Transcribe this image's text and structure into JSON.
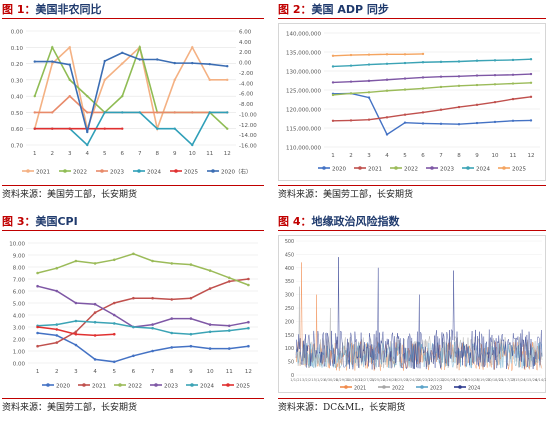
{
  "panels": [
    {
      "fig": "图 1：",
      "title": "美国非农同比",
      "source": "资料来源：美国劳工部，长安期货"
    },
    {
      "fig": "图 2：",
      "title": "美国 ADP 同步",
      "source": "资料来源：美国劳工部，长安期货"
    },
    {
      "fig": "图 3：",
      "title": "美国CPI",
      "source": "资料来源：美国劳工部，长安期货"
    },
    {
      "fig": "图 4：",
      "title": "地缘政治风险指数",
      "source": "资料来源：DC&ML，长安期货"
    }
  ],
  "chart_data": [
    {
      "type": "line",
      "title": "美国非农同比",
      "categories": [
        "1",
        "2",
        "3",
        "4",
        "5",
        "6",
        "7",
        "8",
        "9",
        "10",
        "11",
        "12"
      ],
      "ylim_left": [
        0,
        0.7
      ],
      "yticks_left": [
        "0.00",
        "0.10",
        "0.20",
        "0.30",
        "0.40",
        "0.50",
        "0.60",
        "0.70"
      ],
      "ylim_right": [
        -16,
        6
      ],
      "yticks_right": [
        "6.00",
        "4.00",
        "2.00",
        "0.00",
        "-2.00",
        "-4.00",
        "-6.00",
        "-8.00",
        "-10.00",
        "-12.00",
        "-14.00",
        "-16.00"
      ],
      "series": [
        {
          "name": "2021",
          "color": "#f4b183",
          "axis": "left",
          "values": [
            0.1,
            0.5,
            0.6,
            0.1,
            0.4,
            0.5,
            0.6,
            0.1,
            0.4,
            0.6,
            0.4,
            0.4
          ]
        },
        {
          "name": "2022",
          "color": "#8fbc54",
          "axis": "left",
          "values": [
            0.3,
            0.6,
            0.4,
            0.3,
            0.2,
            0.3,
            0.6,
            0.2,
            0.2,
            0.2,
            0.2,
            0.1
          ]
        },
        {
          "name": "2023",
          "color": "#e88a6a",
          "axis": "left",
          "values": [
            0.2,
            0.2,
            0.3,
            0.2,
            0.2,
            0.2,
            0.2,
            0.2,
            0.2,
            0.2,
            0.2,
            0.2
          ]
        },
        {
          "name": "2024",
          "color": "#2f9fb8",
          "axis": "left",
          "values": [
            0.1,
            0.1,
            0.1,
            0.0,
            0.2,
            0.2,
            0.2,
            0.1,
            0.1,
            0.0,
            0.2,
            0.2
          ]
        },
        {
          "name": "2025",
          "color": "#e03030",
          "axis": "left",
          "values": [
            0.1,
            0.1,
            0.1,
            0.1,
            0.1,
            0.1,
            null,
            null,
            null,
            null,
            null,
            null
          ]
        },
        {
          "name": "2020（右）",
          "color": "#3b6db3",
          "axis": "right",
          "values": [
            0.1,
            0.1,
            -0.5,
            -13.5,
            0.2,
            1.8,
            0.5,
            0.5,
            -0.2,
            -0.2,
            -0.4,
            -0.8
          ]
        }
      ]
    },
    {
      "type": "line",
      "title": "美国 ADP 同步",
      "categories": [
        "1",
        "2",
        "3",
        "4",
        "5",
        "6",
        "7",
        "8",
        "9",
        "10",
        "11",
        "12"
      ],
      "ylim": [
        110000000,
        140000000
      ],
      "yticks": [
        "140,000,000",
        "135,000,000",
        "130,000,000",
        "125,000,000",
        "120,000,000",
        "115,000,000",
        "110,000,000"
      ],
      "series": [
        {
          "name": "2020",
          "color": "#4472c4",
          "values": [
            124000000,
            124100000,
            123000000,
            113300000,
            116400000,
            116200000,
            116100000,
            116000000,
            116300000,
            116600000,
            116900000,
            117000000
          ]
        },
        {
          "name": "2021",
          "color": "#c0504d",
          "values": [
            116900000,
            117000000,
            117200000,
            117800000,
            118500000,
            119100000,
            119800000,
            120500000,
            121100000,
            121800000,
            122600000,
            123200000
          ]
        },
        {
          "name": "2022",
          "color": "#9bbb59",
          "values": [
            123700000,
            124100000,
            124400000,
            124800000,
            125100000,
            125400000,
            125800000,
            126100000,
            126300000,
            126500000,
            126700000,
            126900000
          ]
        },
        {
          "name": "2023",
          "color": "#7e57a5",
          "values": [
            127000000,
            127200000,
            127400000,
            127700000,
            128000000,
            128300000,
            128500000,
            128600000,
            128800000,
            128900000,
            129000000,
            129200000
          ]
        },
        {
          "name": "2024",
          "color": "#3ba3b5",
          "values": [
            131200000,
            131400000,
            131700000,
            131900000,
            132100000,
            132300000,
            132400000,
            132500000,
            132700000,
            132800000,
            132900000,
            133100000
          ]
        },
        {
          "name": "2025",
          "color": "#f4a460",
          "values": [
            134000000,
            134200000,
            134300000,
            134400000,
            134400000,
            134500000,
            null,
            null,
            null,
            null,
            null,
            null
          ]
        }
      ]
    },
    {
      "type": "line",
      "title": "美国CPI",
      "categories": [
        "1",
        "2",
        "3",
        "4",
        "5",
        "6",
        "7",
        "8",
        "9",
        "10",
        "11",
        "12"
      ],
      "ylim": [
        0,
        10
      ],
      "yticks": [
        "10.00",
        "9.00",
        "8.00",
        "7.00",
        "6.00",
        "5.00",
        "4.00",
        "3.00",
        "2.00",
        "1.00",
        "0.00"
      ],
      "series": [
        {
          "name": "2020",
          "color": "#4472c4",
          "values": [
            2.5,
            2.3,
            1.5,
            0.3,
            0.1,
            0.6,
            1.0,
            1.3,
            1.4,
            1.2,
            1.2,
            1.4
          ]
        },
        {
          "name": "2021",
          "color": "#c0504d",
          "values": [
            1.4,
            1.7,
            2.6,
            4.2,
            5.0,
            5.4,
            5.4,
            5.3,
            5.4,
            6.2,
            6.8,
            7.0
          ]
        },
        {
          "name": "2022",
          "color": "#9bbb59",
          "values": [
            7.5,
            7.9,
            8.5,
            8.3,
            8.6,
            9.1,
            8.5,
            8.3,
            8.2,
            7.7,
            7.1,
            6.5
          ]
        },
        {
          "name": "2023",
          "color": "#7e57a5",
          "values": [
            6.4,
            6.0,
            5.0,
            4.9,
            4.0,
            3.0,
            3.2,
            3.7,
            3.7,
            3.2,
            3.1,
            3.4
          ]
        },
        {
          "name": "2024",
          "color": "#3ba3b5",
          "values": [
            3.1,
            3.2,
            3.5,
            3.4,
            3.3,
            3.0,
            2.9,
            2.5,
            2.4,
            2.6,
            2.7,
            2.9
          ]
        },
        {
          "name": "2025",
          "color": "#e03030",
          "values": [
            3.0,
            2.8,
            2.4,
            2.3,
            2.4,
            null,
            null,
            null,
            null,
            null,
            null,
            null
          ]
        }
      ]
    },
    {
      "type": "line",
      "title": "地缘政治风险指数",
      "ylim": [
        0,
        500
      ],
      "yticks": [
        "500",
        "450",
        "400",
        "350",
        "300",
        "250",
        "200",
        "150",
        "100",
        "50",
        "0"
      ],
      "xticks": [
        "1/1/21",
        "3/2/21",
        "5/1/21",
        "6/30/21",
        "8/29/21",
        "10/28/21",
        "12/27/21",
        "2/25/22",
        "4/26/22",
        "6/25/22",
        "8/24/22",
        "10/23/22",
        "12/22/22",
        "2/20/23",
        "4/21/23",
        "6/20/23",
        "8/19/23",
        "10/18/23",
        "12/17/23",
        "2/15/24",
        "4/15/24",
        "6/14/24"
      ],
      "series": [
        {
          "name": "2021",
          "color": "#f08a4b"
        },
        {
          "name": "2022",
          "color": "#a6a6a6"
        },
        {
          "name": "2023",
          "color": "#5ba3c9"
        },
        {
          "name": "2024",
          "color": "#2e3b8f"
        }
      ]
    }
  ]
}
